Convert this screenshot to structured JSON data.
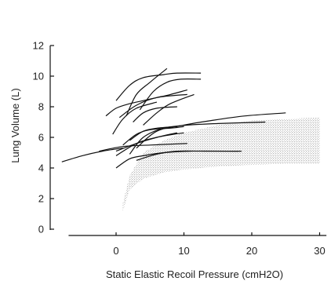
{
  "chart_data": {
    "type": "line",
    "title": "",
    "xlabel": "Static Elastic Recoil Pressure (cmH2O)",
    "ylabel": "Lung Volume (L)",
    "xlim": [
      -10,
      31
    ],
    "ylim": [
      0,
      12
    ],
    "xticks": [
      0,
      10,
      20,
      30
    ],
    "yticks": [
      0,
      2,
      4,
      6,
      8,
      10,
      12
    ],
    "xtick_labels": [
      "0",
      "10",
      "20",
      "30"
    ],
    "ytick_labels": [
      "0",
      "2",
      "4",
      "6",
      "8",
      "10",
      "12"
    ],
    "grid": false,
    "legend": "none",
    "shaded_region": {
      "description": "stippled band",
      "upper": [
        [
          1.0,
          1.7
        ],
        [
          2.0,
          3.5
        ],
        [
          4.0,
          5.0
        ],
        [
          7.0,
          5.8
        ],
        [
          10.0,
          6.3
        ],
        [
          15.0,
          6.8
        ],
        [
          20.0,
          7.1
        ],
        [
          25.0,
          7.2
        ],
        [
          30.0,
          7.3
        ]
      ],
      "lower": [
        [
          1.0,
          1.2
        ],
        [
          2.0,
          2.6
        ],
        [
          4.0,
          3.3
        ],
        [
          7.0,
          3.7
        ],
        [
          10.0,
          3.9
        ],
        [
          15.0,
          4.1
        ],
        [
          20.0,
          4.2
        ],
        [
          25.0,
          4.3
        ],
        [
          30.0,
          4.3
        ]
      ]
    },
    "series": [
      {
        "points": [
          [
            0,
            8.4
          ],
          [
            2,
            9.4
          ],
          [
            4,
            9.9
          ],
          [
            7,
            10.1
          ],
          [
            9,
            10.2
          ],
          [
            12.5,
            10.2
          ]
        ]
      },
      {
        "points": [
          [
            1.5,
            7.4
          ],
          [
            3,
            8.8
          ],
          [
            5,
            9.6
          ],
          [
            7.5,
            10.5
          ]
        ]
      },
      {
        "points": [
          [
            3.5,
            7.8
          ],
          [
            5.5,
            9.0
          ],
          [
            7.5,
            9.6
          ],
          [
            9.5,
            9.8
          ],
          [
            12.5,
            9.8
          ]
        ]
      },
      {
        "points": [
          [
            -1.5,
            7.4
          ],
          [
            0,
            7.9
          ],
          [
            2,
            8.2
          ],
          [
            4,
            8.4
          ],
          [
            6,
            8.6
          ],
          [
            8,
            8.8
          ],
          [
            10.5,
            9.1
          ]
        ]
      },
      {
        "points": [
          [
            0.5,
            7.3
          ],
          [
            3,
            8.1
          ],
          [
            6,
            8.6
          ],
          [
            10.5,
            8.8
          ]
        ]
      },
      {
        "points": [
          [
            -0.5,
            6.2
          ],
          [
            1,
            7.2
          ],
          [
            3,
            7.9
          ],
          [
            6,
            8.3
          ]
        ]
      },
      {
        "points": [
          [
            2.5,
            7.0
          ],
          [
            4,
            7.6
          ],
          [
            6,
            7.9
          ],
          [
            9,
            8.0
          ]
        ]
      },
      {
        "points": [
          [
            4,
            6.8
          ],
          [
            6,
            7.6
          ],
          [
            8,
            8.2
          ],
          [
            11.5,
            8.8
          ]
        ]
      },
      {
        "points": [
          [
            2,
            4.9
          ],
          [
            4,
            6.0
          ],
          [
            7,
            6.6
          ],
          [
            10.5,
            6.8
          ],
          [
            15,
            6.9
          ],
          [
            22,
            7.0
          ]
        ]
      },
      {
        "points": [
          [
            3,
            5.3
          ],
          [
            6,
            6.4
          ],
          [
            10,
            6.8
          ],
          [
            14,
            7.1
          ],
          [
            19,
            7.4
          ],
          [
            25,
            7.6
          ]
        ]
      },
      {
        "points": [
          [
            1,
            5.5
          ],
          [
            3,
            6.2
          ],
          [
            5,
            6.5
          ],
          [
            8,
            6.6
          ],
          [
            10,
            6.7
          ]
        ]
      },
      {
        "points": [
          [
            2,
            5.8
          ],
          [
            4,
            6.4
          ],
          [
            6,
            6.6
          ],
          [
            9,
            6.7
          ]
        ]
      },
      {
        "points": [
          [
            0,
            4.8
          ],
          [
            3,
            5.6
          ],
          [
            6,
            6.0
          ],
          [
            10,
            6.3
          ]
        ]
      },
      {
        "points": [
          [
            0,
            4.0
          ],
          [
            2,
            4.6
          ],
          [
            4,
            4.8
          ],
          [
            7,
            5.0
          ],
          [
            11,
            5.1
          ],
          [
            18,
            5.1
          ]
        ]
      },
      {
        "points": [
          [
            3,
            4.5
          ],
          [
            6,
            4.9
          ],
          [
            9,
            5.1
          ],
          [
            13,
            5.1
          ],
          [
            18.5,
            5.1
          ]
        ]
      },
      {
        "points": [
          [
            -8,
            4.4
          ],
          [
            -5,
            4.8
          ],
          [
            -2,
            5.1
          ],
          [
            1,
            5.3
          ]
        ]
      },
      {
        "points": [
          [
            -2.5,
            5.1
          ],
          [
            1,
            5.4
          ],
          [
            5,
            5.5
          ],
          [
            10.5,
            5.6
          ]
        ]
      },
      {
        "points": [
          [
            0,
            5.1
          ],
          [
            3,
            5.6
          ],
          [
            6,
            6.0
          ],
          [
            9,
            6.3
          ]
        ]
      }
    ]
  }
}
